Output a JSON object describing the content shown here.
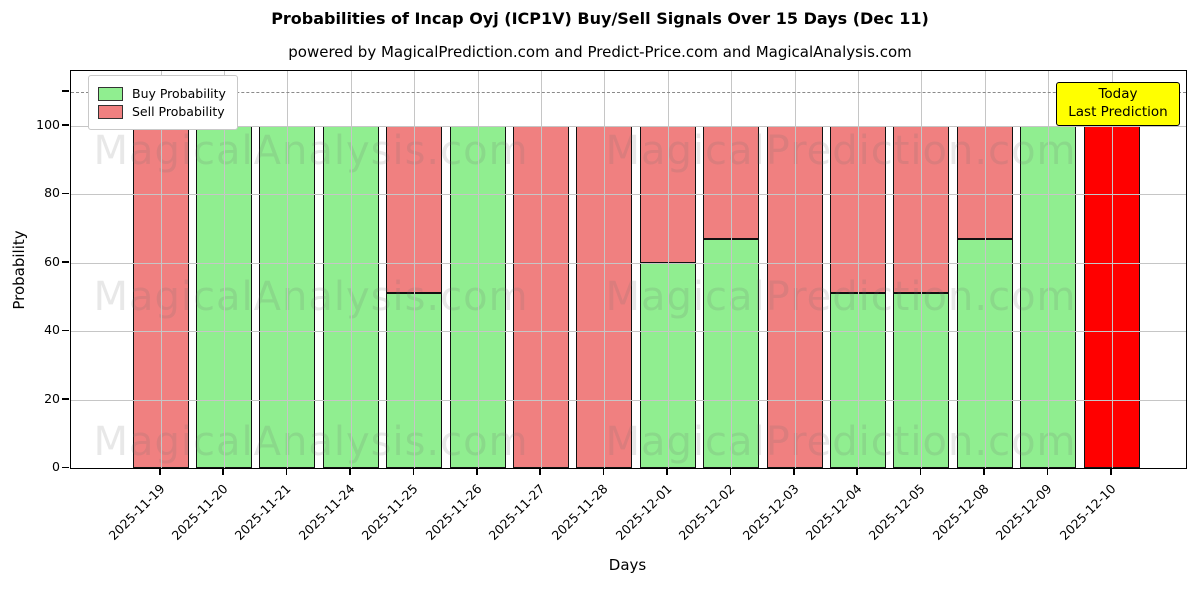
{
  "chart_data": {
    "type": "bar",
    "stacked": true,
    "title": "Probabilities of Incap Oyj (ICP1V) Buy/Sell Signals Over 15 Days (Dec 11)",
    "subtitle": "powered by MagicalPrediction.com and Predict-Price.com and MagicalAnalysis.com",
    "xlabel": "Days",
    "ylabel": "Probability",
    "ylim": [
      0,
      116
    ],
    "yticks": [
      0,
      20,
      40,
      60,
      80,
      100
    ],
    "grid": true,
    "legend_position": "upper left",
    "dashed_line_y": 110,
    "categories": [
      "2025-11-19",
      "2025-11-20",
      "2025-11-21",
      "2025-11-24",
      "2025-11-25",
      "2025-11-26",
      "2025-11-27",
      "2025-11-28",
      "2025-12-01",
      "2025-12-02",
      "2025-12-03",
      "2025-12-04",
      "2025-12-05",
      "2025-12-08",
      "2025-12-09",
      "2025-12-10"
    ],
    "series": [
      {
        "name": "Buy Probability",
        "color": "#90EE90",
        "values": [
          0,
          100,
          100,
          100,
          51,
          100,
          0,
          0,
          60,
          67,
          0,
          51,
          51,
          67,
          100,
          0
        ]
      },
      {
        "name": "Sell Probability",
        "color": "#F08080",
        "values": [
          100,
          0,
          0,
          0,
          49,
          0,
          100,
          100,
          40,
          33,
          100,
          49,
          49,
          33,
          0,
          0
        ]
      }
    ],
    "today_bar": {
      "category": "2025-12-10",
      "index": 15,
      "value": 100,
      "color": "#FF0000"
    },
    "annotation": {
      "lines": [
        "Today",
        "Last Prediction"
      ],
      "bg_color": "#FFFF00"
    },
    "watermarks": [
      "MagicalAnalysis.com",
      "MagicalPrediction.com"
    ]
  }
}
